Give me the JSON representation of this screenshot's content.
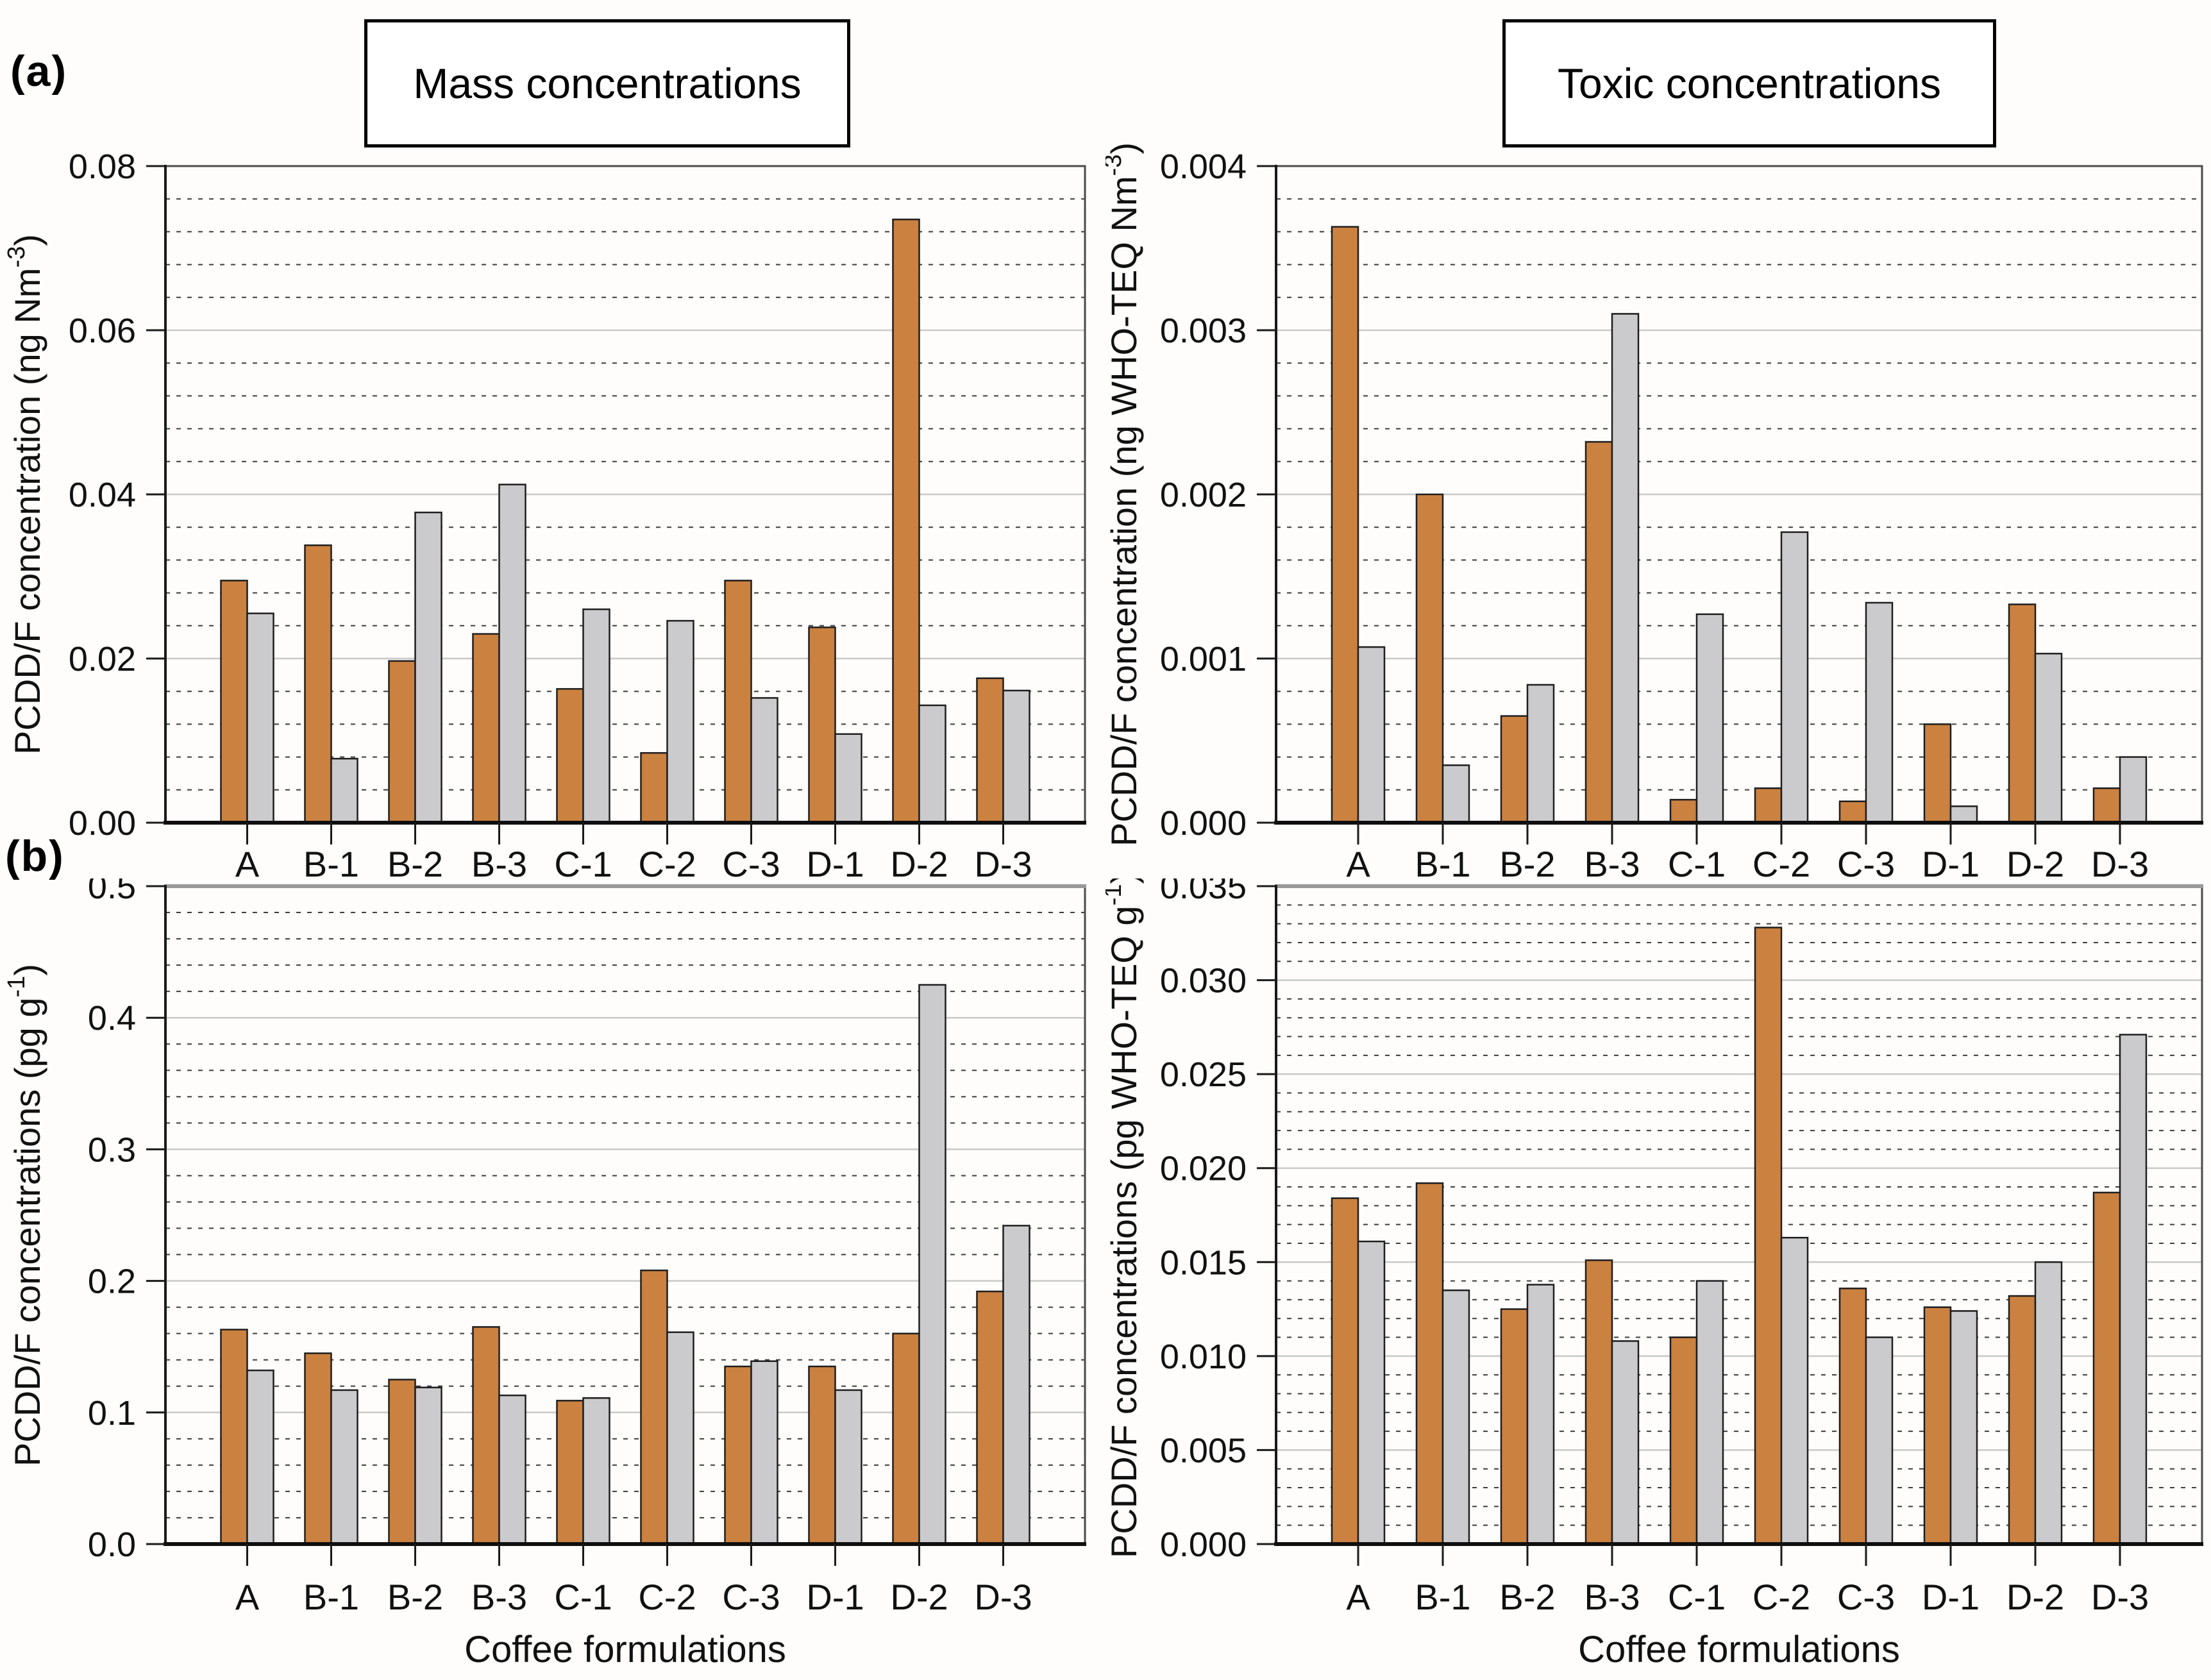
{
  "figure": {
    "panel_labels": {
      "a": "(a)",
      "b": "(b)"
    },
    "column_titles": {
      "left": "Mass concentrations",
      "right": "Toxic concentrations"
    },
    "x_axis_title": "Coffee formulations",
    "colors": {
      "orange_bar": "#CB8140",
      "gray_bar": "#CBCBCE",
      "bar_outline": "#1E1E1E",
      "major_grid": "#C9C9C9",
      "minor_grid": "#3C3C3C",
      "frame": "#4A4A4A",
      "axis": "#0F0F0F",
      "top_frame_bottom_row": "#999999"
    }
  },
  "chart_data": [
    {
      "id": "mass-concentration-air",
      "type": "bar",
      "panel": "a",
      "position": "top-left",
      "title": "Mass concentrations",
      "categories": [
        "A",
        "B-1",
        "B-2",
        "B-3",
        "C-1",
        "C-2",
        "C-3",
        "D-1",
        "D-2",
        "D-3"
      ],
      "ylabel": {
        "pre": "PCDD/F concentration (ng Nm",
        "sup": "-3",
        "post": ")"
      },
      "ylim": [
        0,
        0.08
      ],
      "major_step": 0.02,
      "minor_step": 0.004,
      "ytick_labels": [
        "0.00",
        "0.02",
        "0.04",
        "0.06",
        "0.08"
      ],
      "grid": "major-solid, minor-dotted",
      "legend": "none",
      "x_axis_title": null,
      "show_x_tick_labels": true,
      "series": [
        {
          "name": "orange",
          "color": "#CB8140",
          "values": [
            0.0295,
            0.0338,
            0.0197,
            0.023,
            0.0163,
            0.0085,
            0.0295,
            0.0238,
            0.0735,
            0.0176
          ]
        },
        {
          "name": "gray",
          "color": "#CBCBCE",
          "values": [
            0.0255,
            0.0078,
            0.0378,
            0.0412,
            0.026,
            0.0246,
            0.0152,
            0.0108,
            0.0143,
            0.0161
          ]
        }
      ]
    },
    {
      "id": "toxic-concentration-air",
      "type": "bar",
      "panel": "a",
      "position": "top-right",
      "title": "Toxic concentrations",
      "categories": [
        "A",
        "B-1",
        "B-2",
        "B-3",
        "C-1",
        "C-2",
        "C-3",
        "D-1",
        "D-2",
        "D-3"
      ],
      "ylabel": {
        "pre": "PCDD/F concentration (ng WHO-TEQ Nm",
        "sup": "-3",
        "post": ")"
      },
      "ylim": [
        0,
        0.004
      ],
      "major_step": 0.001,
      "minor_step": 0.0002,
      "ytick_labels": [
        "0.000",
        "0.001",
        "0.002",
        "0.003",
        "0.004"
      ],
      "grid": "major-solid, minor-dotted",
      "legend": "none",
      "x_axis_title": null,
      "show_x_tick_labels": true,
      "series": [
        {
          "name": "orange",
          "color": "#CB8140",
          "values": [
            0.00363,
            0.002,
            0.00065,
            0.00232,
            0.00014,
            0.00021,
            0.00013,
            0.0006,
            0.00133,
            0.00021
          ]
        },
        {
          "name": "gray",
          "color": "#CBCBCE",
          "values": [
            0.00107,
            0.00035,
            0.00084,
            0.0031,
            0.00127,
            0.00177,
            0.00134,
            0.0001,
            0.00103,
            0.0004
          ]
        }
      ]
    },
    {
      "id": "mass-concentration-solid",
      "type": "bar",
      "panel": "b",
      "position": "bottom-left",
      "title": "",
      "categories": [
        "A",
        "B-1",
        "B-2",
        "B-3",
        "C-1",
        "C-2",
        "C-3",
        "D-1",
        "D-2",
        "D-3"
      ],
      "ylabel": {
        "pre": "PCDD/F concentrations (pg g",
        "sup": "-1",
        "post": ")"
      },
      "ylim": [
        0,
        0.5
      ],
      "major_step": 0.1,
      "minor_step": 0.02,
      "ytick_labels": [
        "0.0",
        "0.1",
        "0.2",
        "0.3",
        "0.4",
        "0.5"
      ],
      "grid": "major-solid, minor-dotted",
      "legend": "none",
      "x_axis_title": "Coffee formulations",
      "show_x_tick_labels": true,
      "series": [
        {
          "name": "orange",
          "color": "#CB8140",
          "values": [
            0.163,
            0.145,
            0.125,
            0.165,
            0.109,
            0.208,
            0.135,
            0.135,
            0.16,
            0.192
          ]
        },
        {
          "name": "gray",
          "color": "#CBCBCE",
          "values": [
            0.132,
            0.117,
            0.119,
            0.113,
            0.111,
            0.161,
            0.139,
            0.117,
            0.425,
            0.242
          ]
        }
      ]
    },
    {
      "id": "toxic-concentration-solid",
      "type": "bar",
      "panel": "b",
      "position": "bottom-right",
      "title": "",
      "categories": [
        "A",
        "B-1",
        "B-2",
        "B-3",
        "C-1",
        "C-2",
        "C-3",
        "D-1",
        "D-2",
        "D-3"
      ],
      "ylabel": {
        "pre": "PCDD/F concentrations (pg WHO-TEQ g",
        "sup": "-1",
        "post": ")"
      },
      "ylim": [
        0,
        0.035
      ],
      "major_step": 0.005,
      "minor_step": 0.001,
      "ytick_labels": [
        "0.000",
        "0.005",
        "0.010",
        "0.015",
        "0.020",
        "0.025",
        "0.030",
        "0.035"
      ],
      "grid": "major-solid, minor-dotted",
      "legend": "none",
      "x_axis_title": "Coffee formulations",
      "show_x_tick_labels": true,
      "series": [
        {
          "name": "orange",
          "color": "#CB8140",
          "values": [
            0.0184,
            0.0192,
            0.0125,
            0.0151,
            0.011,
            0.0328,
            0.0136,
            0.0126,
            0.0132,
            0.0187
          ]
        },
        {
          "name": "gray",
          "color": "#CBCBCE",
          "values": [
            0.0161,
            0.0135,
            0.0138,
            0.0108,
            0.014,
            0.0163,
            0.011,
            0.0124,
            0.015,
            0.0271
          ]
        }
      ]
    }
  ]
}
